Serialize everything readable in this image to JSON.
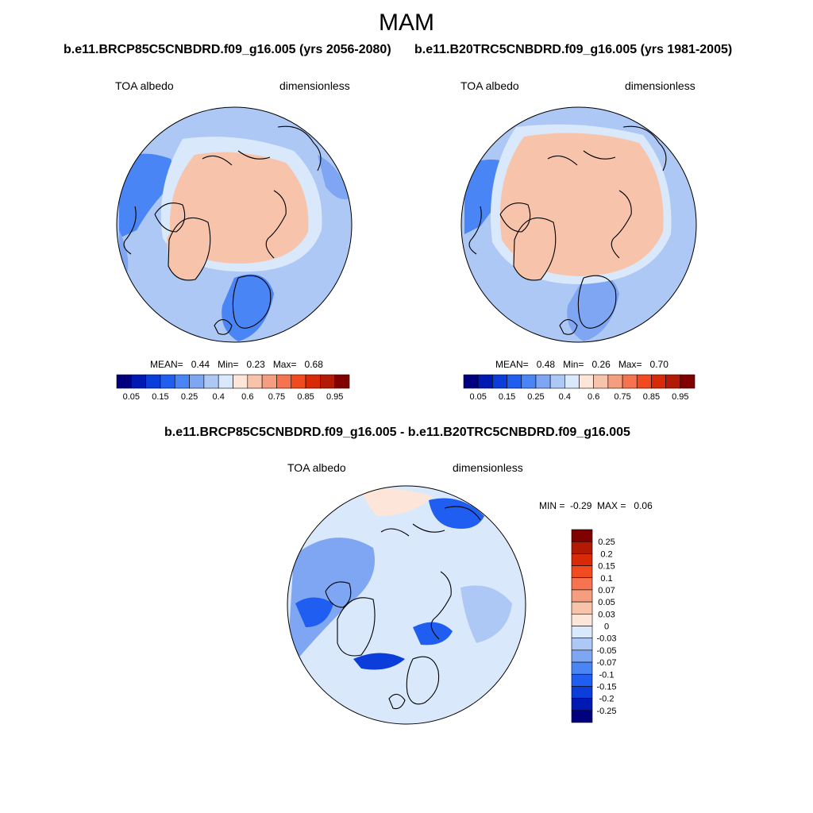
{
  "main_title": "MAM",
  "chart_data": [
    {
      "type": "heatmap",
      "projection": "north polar stereographic",
      "title": "b.e11.BRCP85C5CNBDRD.f09_g16.005 (yrs 2056-2080)",
      "left_label": "TOA albedo",
      "right_label": "dimensionless",
      "stats": {
        "mean_label": "MEAN=",
        "mean": "0.44",
        "min_label": "Min=",
        "min": "0.23",
        "max_label": "Max=",
        "max": "0.68"
      },
      "colorbar_ticks": [
        "0.05",
        "0.15",
        "0.25",
        "0.4",
        "0.6",
        "0.75",
        "0.85",
        "0.95"
      ]
    },
    {
      "type": "heatmap",
      "projection": "north polar stereographic",
      "title": "b.e11.B20TRC5CNBDRD.f09_g16.005 (yrs 1981-2005)",
      "left_label": "TOA albedo",
      "right_label": "dimensionless",
      "stats": {
        "mean_label": "MEAN=",
        "mean": "0.48",
        "min_label": "Min=",
        "min": "0.26",
        "max_label": "Max=",
        "max": "0.70"
      },
      "colorbar_ticks": [
        "0.05",
        "0.15",
        "0.25",
        "0.4",
        "0.6",
        "0.75",
        "0.85",
        "0.95"
      ]
    },
    {
      "type": "heatmap",
      "projection": "north polar stereographic",
      "title": "b.e11.BRCP85C5CNBDRD.f09_g16.005 - b.e11.B20TRC5CNBDRD.f09_g16.005",
      "left_label": "TOA albedo",
      "right_label": "dimensionless",
      "stats": {
        "min_label": "MIN =",
        "min": "-0.29",
        "max_label": "MAX =",
        "max": "0.06"
      },
      "colorbar_ticks": [
        "0.25",
        "0.2",
        "0.15",
        "0.1",
        "0.07",
        "0.05",
        "0.03",
        "0",
        "-0.03",
        "-0.05",
        "-0.07",
        "-0.1",
        "-0.15",
        "-0.2",
        "-0.25"
      ]
    }
  ],
  "colors": {
    "albedo_scale": [
      "#00007f",
      "#0019b3",
      "#0a3dd9",
      "#1f5ef0",
      "#4a85f5",
      "#7fa6f2",
      "#adc8f5",
      "#d9e8fa",
      "#fde6d9",
      "#f7c4ab",
      "#f59e7f",
      "#f5744f",
      "#f24a1f",
      "#d92a08",
      "#b31a05",
      "#800000"
    ],
    "diff_scale_top_to_bottom": [
      "#800000",
      "#b31a05",
      "#d92a08",
      "#f24a1f",
      "#f5744f",
      "#f59e7f",
      "#f7c4ab",
      "#fde6d9",
      "#d9e8fa",
      "#adc8f5",
      "#7fa6f2",
      "#4a85f5",
      "#1f5ef0",
      "#0a3dd9",
      "#0019b3",
      "#00007f"
    ],
    "ocean_light": "#adc8f5",
    "ice_salmon": "#f7c4ab"
  }
}
